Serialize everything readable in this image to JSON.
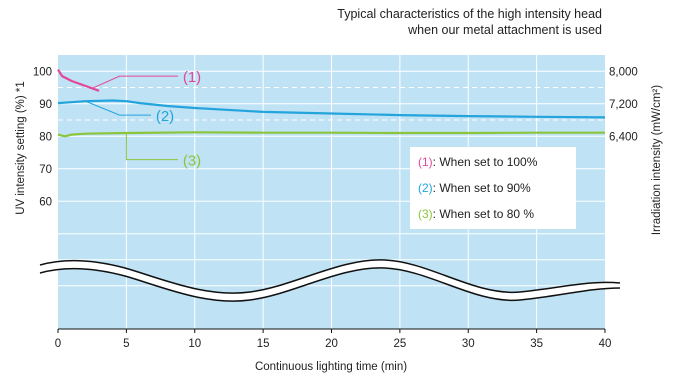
{
  "title_line1": "Typical characteristics of the high intensity head",
  "title_line2": "when our metal attachment is used",
  "colors": {
    "background": "#bfe2f5",
    "series1": "#e3479a",
    "series2": "#23a4dc",
    "series3": "#8cc43c",
    "gridline": "#ffffff"
  },
  "chart_data": {
    "type": "line",
    "xlabel": "Continuous lighting time (min)",
    "ylabel": "UV intensity setting (%) *1",
    "y2label": "Irradiation intensity (mW/cm²)",
    "xlim": [
      0,
      40
    ],
    "ylim": [
      50,
      105
    ],
    "x_ticks": [
      "0",
      "5",
      "10",
      "15",
      "20",
      "25",
      "30",
      "35",
      "40"
    ],
    "x_tick_values": [
      0,
      5,
      10,
      15,
      20,
      25,
      30,
      35,
      40
    ],
    "y_ticks": [
      "100",
      "90",
      "80",
      "70",
      "60"
    ],
    "y_tick_values": [
      100,
      90,
      80,
      70,
      60
    ],
    "y2_ticks": [
      "8,000",
      "7,200",
      "6,400"
    ],
    "y2_tick_values": [
      100,
      90,
      80
    ],
    "axis_break": true,
    "grid": true,
    "legend_position": "right-middle",
    "series": [
      {
        "name": "(1)",
        "label": "(1)",
        "legend_text": "When set to 100%",
        "color": "#e3479a",
        "x": [
          0,
          0.3,
          1,
          2,
          3
        ],
        "y": [
          100.5,
          98.5,
          97,
          95.5,
          94
        ]
      },
      {
        "name": "(2)",
        "label": "(2)",
        "legend_text": "When set to 90%",
        "color": "#23a4dc",
        "x": [
          0,
          2,
          4,
          5,
          6,
          8,
          10,
          15,
          20,
          25,
          30,
          35,
          40
        ],
        "y": [
          90.2,
          90.8,
          91,
          90.8,
          90.2,
          89.3,
          88.7,
          87.5,
          87,
          86.5,
          86.2,
          86,
          85.8
        ]
      },
      {
        "name": "(3)",
        "label": "(3)",
        "legend_text": "When set to 80 %",
        "color": "#8cc43c",
        "x": [
          0,
          0.5,
          1,
          2,
          5,
          10,
          15,
          20,
          25,
          30,
          35,
          40
        ],
        "y": [
          80.5,
          80,
          80.5,
          80.8,
          81,
          81.2,
          81.1,
          81.1,
          81,
          81,
          81.1,
          81.1
        ]
      }
    ]
  }
}
